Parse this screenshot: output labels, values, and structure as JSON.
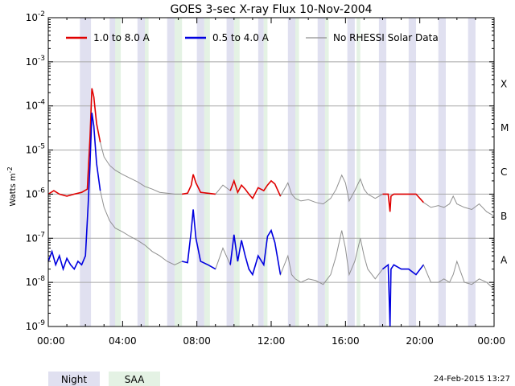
{
  "chart_data": {
    "type": "line",
    "title": "GOES 3-sec X-ray Flux    10-Nov-2004",
    "ylabel": "Watts m",
    "ylabel_superscript": "-2",
    "y_scale": "log",
    "ylim": [
      1e-09,
      0.01
    ],
    "y_ticks": [
      {
        "value": 1e-09,
        "mantissa": "10",
        "exponent": "-9"
      },
      {
        "value": 1e-08,
        "mantissa": "10",
        "exponent": "-8"
      },
      {
        "value": 1e-07,
        "mantissa": "10",
        "exponent": "-7"
      },
      {
        "value": 1e-06,
        "mantissa": "10",
        "exponent": "-6"
      },
      {
        "value": 1e-05,
        "mantissa": "10",
        "exponent": "-5"
      },
      {
        "value": 0.0001,
        "mantissa": "10",
        "exponent": "-4"
      },
      {
        "value": 0.001,
        "mantissa": "10",
        "exponent": "-3"
      },
      {
        "value": 0.01,
        "mantissa": "10",
        "exponent": "-2"
      }
    ],
    "flare_classes": [
      {
        "label": "A",
        "value": 1e-08
      },
      {
        "label": "B",
        "value": 1e-07
      },
      {
        "label": "C",
        "value": 1e-06
      },
      {
        "label": "M",
        "value": 1e-05
      },
      {
        "label": "X",
        "value": 0.0001
      }
    ],
    "xlim": [
      0,
      24
    ],
    "x_ticks": [
      {
        "value": 0,
        "label": "00:00"
      },
      {
        "value": 4,
        "label": "04:00"
      },
      {
        "value": 8,
        "label": "08:00"
      },
      {
        "value": 12,
        "label": "12:00"
      },
      {
        "value": 16,
        "label": "16:00"
      },
      {
        "value": 20,
        "label": "20:00"
      },
      {
        "value": 24,
        "label": "00:00"
      }
    ],
    "grid": "horizontal at decades",
    "legend_placement": "top",
    "legend": [
      {
        "label": "1.0 to 8.0 A",
        "color": "#e00000"
      },
      {
        "label": "0.5 to 4.0 A",
        "color": "#0000e0"
      },
      {
        "label": "No RHESSI Solar Data",
        "color": "#909090"
      }
    ],
    "night_color": "#e0e0f0",
    "saa_color": "#e4f2e4",
    "night_intervals": [
      [
        1.7,
        2.3
      ],
      [
        3.3,
        3.7
      ],
      [
        4.8,
        5.2
      ],
      [
        6.4,
        6.8
      ],
      [
        8.0,
        8.4
      ],
      [
        9.6,
        10.0
      ],
      [
        11.3,
        11.6
      ],
      [
        12.9,
        13.3
      ],
      [
        14.5,
        14.9
      ],
      [
        16.1,
        16.5
      ],
      [
        17.8,
        18.2
      ],
      [
        19.4,
        19.8
      ],
      [
        21.0,
        21.4
      ],
      [
        22.6,
        23.0
      ]
    ],
    "saa_intervals": [
      [
        3.6,
        3.9
      ],
      [
        5.2,
        5.4
      ],
      [
        6.8,
        7.2
      ],
      [
        8.4,
        8.7
      ],
      [
        10.0,
        10.3
      ],
      [
        11.6,
        11.8
      ],
      [
        13.3,
        13.5
      ],
      [
        14.9,
        15.1
      ],
      [
        16.6,
        16.8
      ]
    ],
    "series": [
      {
        "name": "1.0 to 8.0 A",
        "color": "#e00000",
        "x": [
          0.0,
          0.3,
          0.6,
          1.0,
          1.4,
          1.8,
          2.1,
          2.25,
          2.35,
          2.45,
          2.6,
          2.8,
          3.0,
          3.3,
          3.6,
          4.0,
          4.4,
          4.8,
          5.2,
          5.6,
          6.0,
          6.4,
          6.8,
          7.2,
          7.5,
          7.7,
          7.8,
          7.95,
          8.2,
          8.6,
          9.0,
          9.4,
          9.8,
          10.0,
          10.2,
          10.4,
          10.6,
          10.8,
          11.0,
          11.3,
          11.6,
          11.8,
          12.0,
          12.2,
          12.5,
          12.9,
          13.1,
          13.3,
          13.6,
          14.0,
          14.4,
          14.8,
          15.2,
          15.5,
          15.8,
          16.0,
          16.2,
          16.5,
          16.8,
          17.0,
          17.2,
          17.6,
          18.0,
          18.3,
          18.4,
          18.45,
          18.6,
          19.0,
          19.4,
          19.8,
          20.2,
          20.6,
          21.0,
          21.3,
          21.6,
          21.8,
          22.0,
          22.4,
          22.8,
          23.2,
          23.6,
          24.0
        ],
        "y": [
          1e-06,
          1.2e-06,
          1e-06,
          9e-07,
          1e-06,
          1.1e-06,
          1.3e-06,
          2e-05,
          0.00025,
          0.00016,
          4e-05,
          1.5e-05,
          7e-06,
          4.5e-06,
          3.5e-06,
          2.8e-06,
          2.3e-06,
          1.9e-06,
          1.5e-06,
          1.3e-06,
          1.1e-06,
          1.05e-06,
          1e-06,
          1e-06,
          1.05e-06,
          1.6e-06,
          2.8e-06,
          1.8e-06,
          1.1e-06,
          1.05e-06,
          1e-06,
          1.6e-06,
          1.2e-06,
          2e-06,
          1.1e-06,
          1.6e-06,
          1.3e-06,
          1e-06,
          8e-07,
          1.4e-06,
          1.2e-06,
          1.6e-06,
          2e-06,
          1.7e-06,
          9e-07,
          1.8e-06,
          1e-06,
          8e-07,
          7e-07,
          7.5e-07,
          6.5e-07,
          6e-07,
          8e-07,
          1.3e-06,
          2.7e-06,
          1.8e-06,
          7e-07,
          1.2e-06,
          2.2e-06,
          1.3e-06,
          1e-06,
          8e-07,
          1e-06,
          1e-06,
          4e-07,
          9e-07,
          1e-06,
          1e-06,
          1e-06,
          1e-06,
          6.5e-07,
          5e-07,
          5.5e-07,
          5e-07,
          6e-07,
          9e-07,
          6e-07,
          5e-07,
          4.5e-07,
          6e-07,
          4e-07,
          3.2e-07
        ]
      },
      {
        "name": "0.5 to 4.0 A",
        "color": "#0000e0",
        "x": [
          0.0,
          0.2,
          0.4,
          0.6,
          0.8,
          1.0,
          1.2,
          1.4,
          1.6,
          1.8,
          2.0,
          2.15,
          2.25,
          2.35,
          2.45,
          2.6,
          2.8,
          3.0,
          3.3,
          3.6,
          4.0,
          4.4,
          4.8,
          5.2,
          5.6,
          6.0,
          6.4,
          6.8,
          7.2,
          7.5,
          7.7,
          7.8,
          7.95,
          8.2,
          8.6,
          9.0,
          9.4,
          9.8,
          10.0,
          10.2,
          10.4,
          10.6,
          10.8,
          11.0,
          11.3,
          11.6,
          11.8,
          12.0,
          12.2,
          12.5,
          12.9,
          13.1,
          13.3,
          13.6,
          14.0,
          14.4,
          14.8,
          15.2,
          15.5,
          15.8,
          16.0,
          16.2,
          16.5,
          16.8,
          17.0,
          17.2,
          17.6,
          18.0,
          18.3,
          18.4,
          18.45,
          18.6,
          19.0,
          19.4,
          19.8,
          20.2,
          20.6,
          21.0,
          21.3,
          21.6,
          21.8,
          22.0,
          22.4,
          22.8,
          23.2,
          23.6,
          24.0
        ],
        "y": [
          3e-08,
          5e-08,
          2.5e-08,
          4e-08,
          2e-08,
          3.5e-08,
          2.5e-08,
          2e-08,
          3e-08,
          2.5e-08,
          4e-08,
          6e-07,
          5e-06,
          7e-05,
          3.5e-05,
          5e-06,
          1.2e-06,
          5e-07,
          2.5e-07,
          1.7e-07,
          1.4e-07,
          1.1e-07,
          9e-08,
          7e-08,
          5e-08,
          4e-08,
          3e-08,
          2.5e-08,
          3e-08,
          2.8e-08,
          1.5e-07,
          4.5e-07,
          1e-07,
          3e-08,
          2.5e-08,
          2e-08,
          6e-08,
          2.5e-08,
          1.2e-07,
          3e-08,
          9e-08,
          4e-08,
          2e-08,
          1.5e-08,
          4e-08,
          2.5e-08,
          1.1e-07,
          1.5e-07,
          8e-08,
          1.5e-08,
          4e-08,
          1.5e-08,
          1.2e-08,
          1e-08,
          1.2e-08,
          1.1e-08,
          9e-09,
          1.5e-08,
          4e-08,
          1.5e-07,
          6e-08,
          1.5e-08,
          3e-08,
          1e-07,
          4e-08,
          2e-08,
          1.2e-08,
          2e-08,
          2.5e-08,
          1e-09,
          2e-08,
          2.5e-08,
          2e-08,
          2e-08,
          1.5e-08,
          2.5e-08,
          1e-08,
          1e-08,
          1.2e-08,
          1e-08,
          1.5e-08,
          3e-08,
          1e-08,
          9e-09,
          1.2e-08,
          1e-08,
          7e-09
        ]
      }
    ],
    "gray_segments": [
      [
        2.8,
        7.4
      ],
      [
        9.0,
        9.9
      ],
      [
        12.4,
        18.0
      ],
      [
        20.0,
        24.0
      ]
    ],
    "footer_legend": [
      {
        "label": "Night",
        "color": "#e0e0f0"
      },
      {
        "label": "SAA",
        "color": "#e4f2e4"
      }
    ],
    "timestamp": "24-Feb-2015 13:27"
  }
}
